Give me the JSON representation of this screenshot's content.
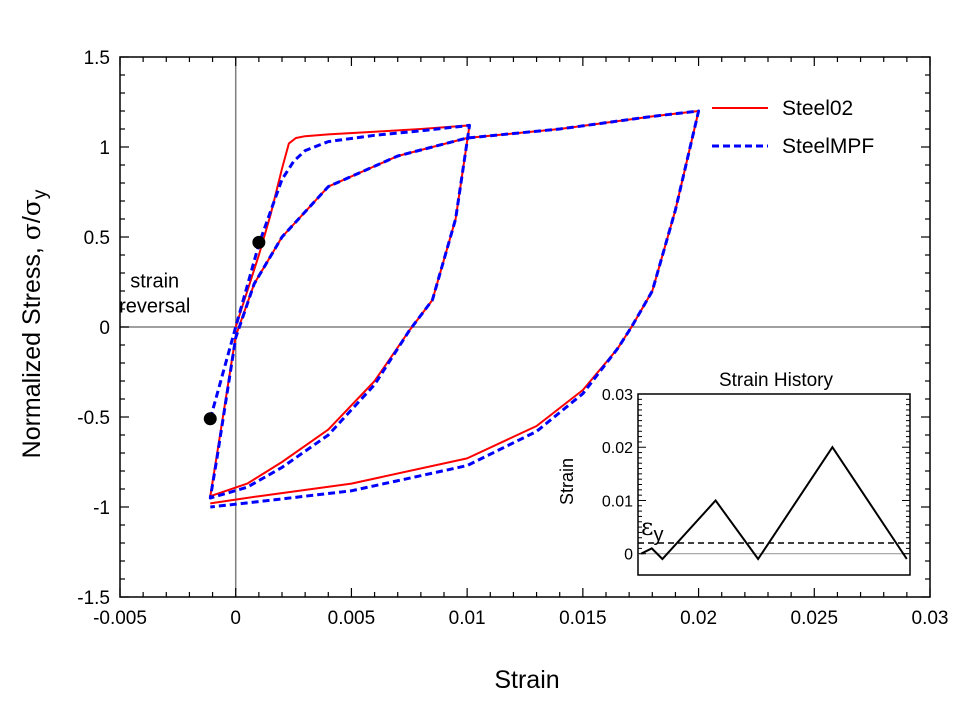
{
  "chart_data": [
    {
      "type": "line",
      "title": "",
      "xlabel": "Strain",
      "ylabel": "Normalized Stress, σ/σy",
      "ylabel_parts": {
        "main": "Normalized Stress, ",
        "sigma": "σ",
        "slash": "/",
        "sigma2": "σ",
        "sub": "y"
      },
      "xlim": [
        -0.005,
        0.03
      ],
      "ylim": [
        -1.5,
        1.5
      ],
      "xticks": [
        -0.005,
        0,
        0.005,
        0.01,
        0.015,
        0.02,
        0.025,
        0.03
      ],
      "xtick_labels": [
        "-0.005",
        "0",
        "0.005",
        "0.01",
        "0.015",
        "0.02",
        "0.025",
        "0.03"
      ],
      "yticks": [
        -1.5,
        -1,
        -0.5,
        0,
        0.5,
        1,
        1.5
      ],
      "ytick_labels": [
        "-1.5",
        "-1",
        "-0.5",
        "0",
        "0.5",
        "1",
        "1.5"
      ],
      "legend": {
        "placement": "top-right"
      },
      "series": [
        {
          "name": "Steel02",
          "color": "#ff0000",
          "style": "solid",
          "x": [
            0,
            0.0005,
            0.001,
            0.0015,
            0.002,
            0.0023,
            0.0026,
            0.003,
            0.004,
            0.006,
            0.008,
            0.0101,
            0.0101,
            0.0095,
            0.0085,
            0.0075,
            0.006,
            0.004,
            0.002,
            0.0005,
            -0.0011,
            -0.0011,
            -0.0008,
            0,
            0.0008,
            0.002,
            0.004,
            0.007,
            0.01,
            0.014,
            0.018,
            0.02,
            0.02,
            0.019,
            0.018,
            0.0171,
            0.0165,
            0.015,
            0.013,
            0.01,
            0.005,
            0.001,
            -0.0011
          ],
          "y": [
            0,
            0.2,
            0.4,
            0.62,
            0.88,
            1.02,
            1.05,
            1.06,
            1.07,
            1.085,
            1.1,
            1.12,
            1.12,
            0.6,
            0.15,
            -0.02,
            -0.3,
            -0.57,
            -0.75,
            -0.87,
            -0.94,
            -0.94,
            -0.7,
            -0.05,
            0.24,
            0.5,
            0.78,
            0.95,
            1.05,
            1.1,
            1.17,
            1.2,
            1.2,
            0.65,
            0.2,
            0.0,
            -0.12,
            -0.35,
            -0.55,
            -0.73,
            -0.87,
            -0.94,
            -0.98
          ]
        },
        {
          "name": "SteelMPF",
          "color": "#0000ff",
          "style": "dashed",
          "x": [
            -0.0011,
            0,
            0.001,
            0.0015,
            0.002,
            0.0025,
            0.003,
            0.004,
            0.006,
            0.008,
            0.0101,
            0.0101,
            0.0095,
            0.0085,
            0.0075,
            0.006,
            0.004,
            0.002,
            0.0005,
            -0.0011,
            -0.0011,
            -0.0008,
            0,
            0.0008,
            0.002,
            0.004,
            0.007,
            0.01,
            0.014,
            0.018,
            0.02,
            0.02,
            0.019,
            0.018,
            0.0171,
            0.0165,
            0.015,
            0.013,
            0.01,
            0.005,
            0.001,
            -0.0011
          ],
          "y": [
            -0.51,
            0,
            0.46,
            0.64,
            0.82,
            0.92,
            0.98,
            1.03,
            1.065,
            1.09,
            1.12,
            1.12,
            0.6,
            0.15,
            -0.02,
            -0.32,
            -0.6,
            -0.78,
            -0.89,
            -0.95,
            -0.95,
            -0.72,
            -0.06,
            0.24,
            0.5,
            0.78,
            0.95,
            1.05,
            1.1,
            1.17,
            1.2,
            1.2,
            0.65,
            0.2,
            0.0,
            -0.12,
            -0.37,
            -0.58,
            -0.77,
            -0.91,
            -0.97,
            -1.0
          ]
        }
      ],
      "markers": [
        {
          "x": 0.001,
          "y": 0.47
        },
        {
          "x": -0.0011,
          "y": -0.51
        }
      ],
      "annotations": [
        {
          "text": "strain",
          "x": -0.0035,
          "y": 0.22
        },
        {
          "text": "reversal",
          "x": -0.0035,
          "y": 0.08
        }
      ],
      "reference_lines": {
        "x0": true,
        "y0": true,
        "color": "#808080"
      }
    },
    {
      "type": "line",
      "title": "Strain History",
      "xlabel": "",
      "ylabel": "Strain",
      "ylim": [
        -0.004,
        0.03
      ],
      "yticks": [
        0,
        0.01,
        0.02,
        0.03
      ],
      "ytick_labels": [
        "0",
        "0.01",
        "0.02",
        "0.03"
      ],
      "x": [
        0,
        1,
        2,
        7,
        11,
        18,
        25
      ],
      "values": [
        0,
        0.001,
        -0.001,
        0.01,
        -0.001,
        0.02,
        -0.001
      ],
      "x_extent": [
        -0.3,
        25.3
      ],
      "yield_line": {
        "value": 0.002,
        "label_main": "ε",
        "label_sub": "y"
      }
    }
  ]
}
